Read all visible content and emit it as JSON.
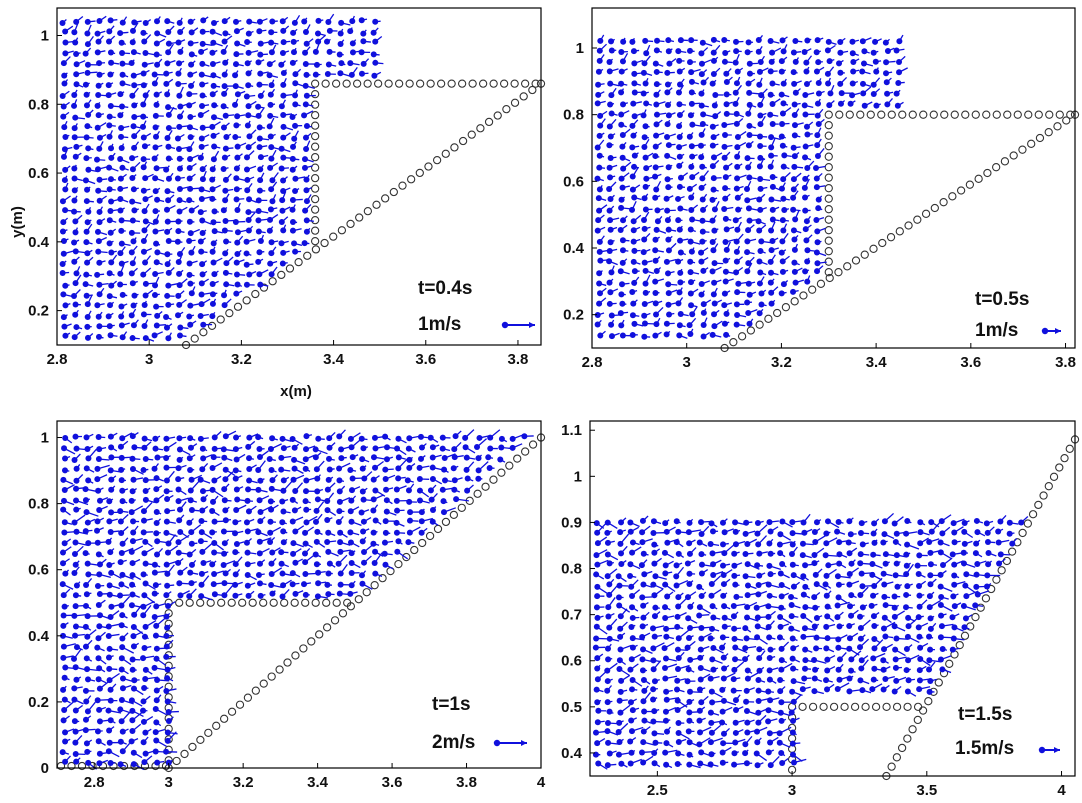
{
  "colors": {
    "velocity": "#1010dd",
    "boundary": "#333333",
    "axes": "#000000"
  },
  "chart_data": [
    {
      "type": "scatter",
      "title": "",
      "xlabel": "x(m)",
      "ylabel": "y(m)",
      "xlim": [
        2.8,
        3.85
      ],
      "ylim": [
        0.1,
        1.08
      ],
      "xticks": [
        "2.8",
        "3",
        "3.2",
        "3.4",
        "3.6",
        "3.8"
      ],
      "yticks": [
        "0.2",
        "0.4",
        "0.6",
        "0.8",
        "1"
      ],
      "time_label": "t=0.4s",
      "scale_label": "1m/s",
      "step_top_y": 0.86,
      "step_x": 3.36,
      "slope_start": [
        3.08,
        0.1
      ],
      "slope_end": [
        3.85,
        0.86
      ]
    },
    {
      "type": "scatter",
      "title": "",
      "xlabel": "",
      "ylabel": "",
      "xlim": [
        2.8,
        3.82
      ],
      "ylim": [
        0.1,
        1.12
      ],
      "xticks": [
        "2.8",
        "3",
        "3.2",
        "3.4",
        "3.6",
        "3.8"
      ],
      "yticks": [
        "0.2",
        "0.4",
        "0.6",
        "0.8",
        "1"
      ],
      "time_label": "t=0.5s",
      "scale_label": "1m/s",
      "step_top_y": 0.8,
      "step_x": 3.3,
      "slope_start": [
        3.08,
        0.1
      ],
      "slope_end": [
        3.82,
        0.8
      ]
    },
    {
      "type": "scatter",
      "title": "",
      "xlabel": "",
      "ylabel": "",
      "xlim": [
        2.7,
        4.0
      ],
      "ylim": [
        0.0,
        1.05
      ],
      "xticks": [
        "2.8",
        "3",
        "3.2",
        "3.4",
        "3.6",
        "3.8",
        "4"
      ],
      "yticks": [
        "0",
        "0.2",
        "0.4",
        "0.6",
        "0.8",
        "1"
      ],
      "time_label": "t=1s",
      "scale_label": "2m/s",
      "step_top_y": 0.5,
      "step_x": 3.0,
      "slope_start": [
        3.0,
        0.0
      ],
      "slope_end": [
        4.0,
        1.0
      ]
    },
    {
      "type": "scatter",
      "title": "",
      "xlabel": "",
      "ylabel": "",
      "xlim": [
        2.25,
        4.05
      ],
      "ylim": [
        0.35,
        1.12
      ],
      "xticks": [
        "2.5",
        "3",
        "3.5",
        "4"
      ],
      "yticks": [
        "0.4",
        "0.5",
        "0.6",
        "0.7",
        "0.8",
        "0.9",
        "1",
        "1.1"
      ],
      "time_label": "t=1.5s",
      "scale_label": "1.5m/s",
      "step_top_y": 0.5,
      "step_x": 3.0,
      "slope_start": [
        3.35,
        0.35
      ],
      "slope_end": [
        4.05,
        1.08
      ]
    }
  ]
}
